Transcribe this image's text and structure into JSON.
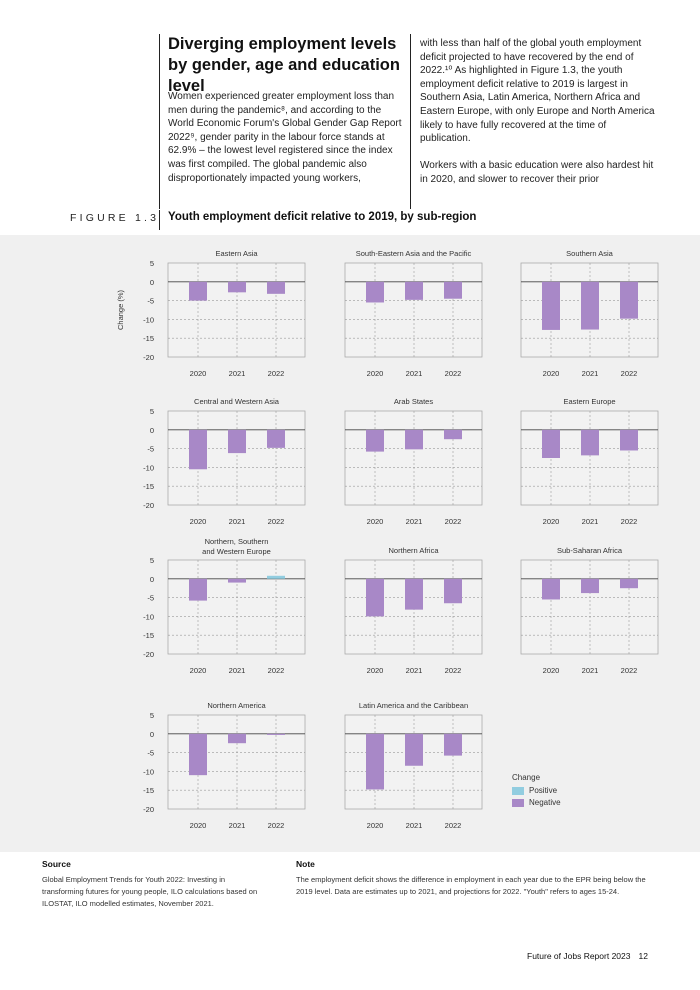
{
  "article": {
    "heading": "Diverging employment levels by gender, age and education level",
    "left_paragraph": "Women experienced greater employment loss than men during the pandemic⁸, and according to the World Economic Forum's Global Gender Gap Report 2022⁹, gender parity in the labour force stands at 62.9% – the lowest level registered since the index was first compiled. The global pandemic also disproportionately impacted young workers,",
    "right_paragraph_1": "with less than half of the global youth employment deficit projected to have recovered by the end of 2022.¹⁰ As highlighted in Figure 1.3, the youth employment deficit relative to 2019 is largest in Southern Asia, Latin America, Northern Africa and Eastern Europe, with only Europe and North America likely to have fully recovered at the time of publication.",
    "right_paragraph_2": "Workers with a basic education were also hardest hit in 2020, and slower to recover their prior"
  },
  "figure": {
    "label": "FIGURE 1.3",
    "title": "Youth employment deficit relative to 2019, by sub-region"
  },
  "legend": {
    "title": "Change",
    "positive": "Positive",
    "negative": "Negative"
  },
  "colors": {
    "positive": "#92cde0",
    "negative": "#a888c7",
    "panel_bg": "#f0f0f0"
  },
  "chart_data": [
    {
      "type": "bar",
      "title": "Eastern Asia",
      "categories": [
        "2020",
        "2021",
        "2022"
      ],
      "values": [
        -5,
        -2.8,
        -3.2
      ],
      "ylabel": "Change (%)",
      "ylim": [
        -20,
        5
      ],
      "yticks": [
        5,
        0,
        -5,
        -10,
        -15,
        -20
      ]
    },
    {
      "type": "bar",
      "title": "South-Eastern Asia and the Pacific",
      "categories": [
        "2020",
        "2021",
        "2022"
      ],
      "values": [
        -5.5,
        -4.8,
        -4.5
      ],
      "ylim": [
        -20,
        5
      ]
    },
    {
      "type": "bar",
      "title": "Southern Asia",
      "categories": [
        "2020",
        "2021",
        "2022"
      ],
      "values": [
        -12.8,
        -12.7,
        -9.8
      ],
      "ylim": [
        -20,
        5
      ]
    },
    {
      "type": "bar",
      "title": "Central and Western Asia",
      "categories": [
        "2020",
        "2021",
        "2022"
      ],
      "values": [
        -10.5,
        -6.2,
        -4.8
      ],
      "ylabel": "Change (%)",
      "ylim": [
        -20,
        5
      ],
      "yticks": [
        5,
        0,
        -5,
        -10,
        -15,
        -20
      ]
    },
    {
      "type": "bar",
      "title": "Arab States",
      "categories": [
        "2020",
        "2021",
        "2022"
      ],
      "values": [
        -5.8,
        -5.2,
        -2.5
      ],
      "ylim": [
        -20,
        5
      ]
    },
    {
      "type": "bar",
      "title": "Eastern Europe",
      "categories": [
        "2020",
        "2021",
        "2022"
      ],
      "values": [
        -7.5,
        -6.8,
        -5.5
      ],
      "ylim": [
        -20,
        5
      ]
    },
    {
      "type": "bar",
      "title": "Northern, Southern and Western Europe",
      "categories": [
        "2020",
        "2021",
        "2022"
      ],
      "values": [
        -5.8,
        -1,
        0.8
      ],
      "ylabel": "Change (%)",
      "ylim": [
        -20,
        5
      ],
      "yticks": [
        5,
        0,
        -5,
        -10,
        -15,
        -20
      ]
    },
    {
      "type": "bar",
      "title": "Northern Africa",
      "categories": [
        "2020",
        "2021",
        "2022"
      ],
      "values": [
        -10,
        -8.2,
        -6.5
      ],
      "ylim": [
        -20,
        5
      ]
    },
    {
      "type": "bar",
      "title": "Sub-Saharan Africa",
      "categories": [
        "2020",
        "2021",
        "2022"
      ],
      "values": [
        -5.5,
        -3.8,
        -2.5
      ],
      "ylim": [
        -20,
        5
      ]
    },
    {
      "type": "bar",
      "title": "Northern America",
      "categories": [
        "2020",
        "2021",
        "2022"
      ],
      "values": [
        -11,
        -2.5,
        -0.3
      ],
      "ylabel": "Change (%)",
      "ylim": [
        -20,
        5
      ],
      "yticks": [
        5,
        0,
        -5,
        -10,
        -15,
        -20
      ]
    },
    {
      "type": "bar",
      "title": "Latin America and the Caribbean",
      "categories": [
        "2020",
        "2021",
        "2022"
      ],
      "values": [
        -14.8,
        -8.5,
        -5.8
      ],
      "ylim": [
        -20,
        5
      ]
    }
  ],
  "source": {
    "heading": "Source",
    "text": "Global Employment Trends for Youth 2022: Investing in transforming futures for young people, ILO calculations based on ILOSTAT, ILO modelled estimates, November 2021."
  },
  "note": {
    "heading": "Note",
    "text": "The employment deficit shows the difference in employment in each year due to the EPR being below the 2019 level. Data are estimates up to 2021, and projections for 2022. \"Youth\" refers to ages 15-24."
  },
  "page_footer": {
    "report": "Future of Jobs Report 2023",
    "page": "12"
  }
}
